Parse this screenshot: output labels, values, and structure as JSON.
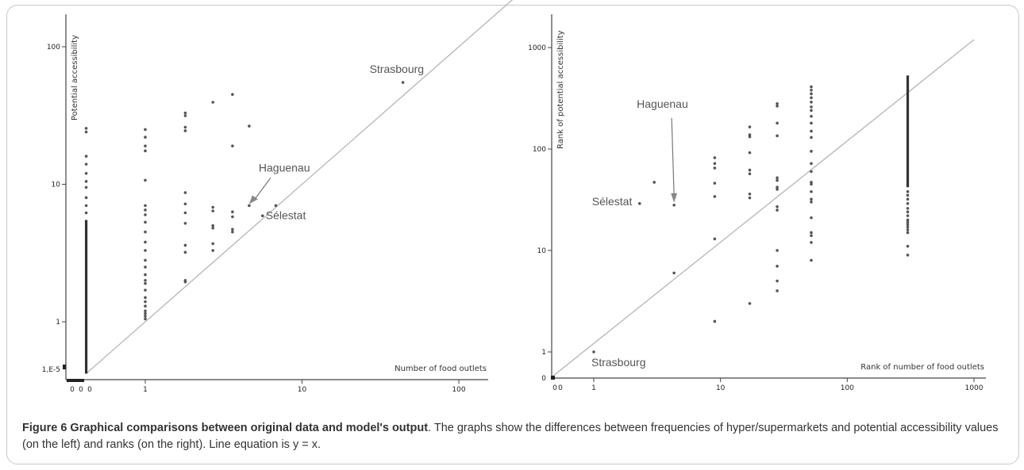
{
  "caption": {
    "title": "Figure 6 Graphical comparisons between original data and model's output",
    "text": ". The graphs show the differences between frequencies of hyper/supermarkets and potential accessibility values (on the left) and ranks (on the right). Line equation is y = x."
  },
  "chart_data": [
    {
      "type": "scatter",
      "xlabel": "Number of food outlets",
      "ylabel": "Potential accessibility",
      "x_scale": "log",
      "y_scale": "log",
      "x_ticks": [
        {
          "value": 1,
          "label": "1"
        },
        {
          "value": 10,
          "label": "10"
        },
        {
          "value": 100,
          "label": "100"
        }
      ],
      "x_zero_labels": [
        "0",
        "0",
        "0"
      ],
      "y_ticks": [
        {
          "value": 1,
          "label": "1"
        },
        {
          "value": 10,
          "label": "10"
        },
        {
          "value": 100,
          "label": "100"
        }
      ],
      "y_extra_tick": "1,E-5",
      "reference_line": "y = x",
      "annotations": [
        {
          "text": "Strasbourg",
          "x": 44,
          "y": 55
        },
        {
          "text": "Haguenau",
          "x": 4.6,
          "y": 7.0
        },
        {
          "text": "Sélestat",
          "x": 5.6,
          "y": 5.9
        }
      ],
      "points": [
        [
          1,
          25
        ],
        [
          1,
          22
        ],
        [
          1,
          19
        ],
        [
          1,
          17.5
        ],
        [
          1,
          10.7
        ],
        [
          1,
          7
        ],
        [
          1,
          6.5
        ],
        [
          1,
          6
        ],
        [
          1,
          5.3
        ],
        [
          1,
          4.5
        ],
        [
          1,
          3.8
        ],
        [
          1,
          3.3
        ],
        [
          1,
          2.8
        ],
        [
          1,
          2.5
        ],
        [
          1,
          2.2
        ],
        [
          1,
          2
        ],
        [
          1,
          1.9
        ],
        [
          1,
          1.7
        ],
        [
          1,
          1.5
        ],
        [
          1,
          1.4
        ],
        [
          1,
          1.3
        ],
        [
          1,
          1.2
        ],
        [
          1,
          1.15
        ],
        [
          1,
          1.1
        ],
        [
          1,
          1.05
        ],
        [
          1.8,
          33
        ],
        [
          1.8,
          31.5
        ],
        [
          1.8,
          26
        ],
        [
          1.8,
          24.5
        ],
        [
          1.8,
          8.7
        ],
        [
          1.8,
          7.2
        ],
        [
          1.8,
          6.2
        ],
        [
          1.8,
          5.2
        ],
        [
          1.8,
          3.6
        ],
        [
          1.8,
          3.2
        ],
        [
          1.8,
          2
        ],
        [
          1.8,
          1.95
        ],
        [
          2.7,
          39.5
        ],
        [
          2.7,
          6.8
        ],
        [
          2.7,
          6.4
        ],
        [
          2.7,
          5
        ],
        [
          2.7,
          4.8
        ],
        [
          2.7,
          3.7
        ],
        [
          2.7,
          3.3
        ],
        [
          3.6,
          45
        ],
        [
          3.6,
          19
        ],
        [
          3.6,
          6.3
        ],
        [
          3.6,
          5.8
        ],
        [
          3.6,
          4.7
        ],
        [
          3.6,
          4.5
        ],
        [
          4.6,
          26.5
        ],
        [
          4.6,
          7.0
        ],
        [
          5.6,
          5.9
        ],
        [
          6.8,
          7.0
        ],
        [
          44,
          55
        ]
      ],
      "zero_column": {
        "x": 0.42,
        "y_dense_range": [
          0.42,
          5.5
        ],
        "scattered_upper": [
          6.2,
          7,
          8,
          9.5,
          10.5,
          12,
          14,
          16,
          24,
          25.5
        ]
      }
    },
    {
      "type": "scatter",
      "xlabel": "Rank of number of food outlets",
      "ylabel": "Rank of potential accessibility",
      "x_scale": "log",
      "y_scale": "log",
      "x_ticks": [
        {
          "value": 1,
          "label": "1"
        },
        {
          "value": 10,
          "label": "10"
        },
        {
          "value": 100,
          "label": "100"
        },
        {
          "value": 1000,
          "label": "1000"
        }
      ],
      "x_zero_labels": [
        "0",
        "0"
      ],
      "y_ticks": [
        {
          "value": 1,
          "label": "1"
        },
        {
          "value": 10,
          "label": "10"
        },
        {
          "value": 100,
          "label": "100"
        },
        {
          "value": 1000,
          "label": "1000"
        }
      ],
      "y_zero_label": "0",
      "reference_line": "y = x",
      "annotations": [
        {
          "text": "Haguenau",
          "x": 4.3,
          "y": 28
        },
        {
          "text": "Sélestat",
          "x": 2.3,
          "y": 29
        },
        {
          "text": "Strasbourg",
          "x": 1,
          "y": 1
        }
      ],
      "points": [
        [
          1,
          1
        ],
        [
          2.3,
          29
        ],
        [
          3,
          47
        ],
        [
          4.3,
          28
        ],
        [
          4.3,
          6
        ],
        [
          9,
          82
        ],
        [
          9,
          72
        ],
        [
          9,
          65
        ],
        [
          9,
          46
        ],
        [
          9,
          34
        ],
        [
          9,
          13
        ],
        [
          9,
          2
        ],
        [
          17,
          165
        ],
        [
          17,
          138
        ],
        [
          17,
          132
        ],
        [
          17,
          92
        ],
        [
          17,
          62
        ],
        [
          17,
          57
        ],
        [
          17,
          36
        ],
        [
          17,
          33
        ],
        [
          17,
          3
        ],
        [
          28,
          280
        ],
        [
          28,
          265
        ],
        [
          28,
          180
        ],
        [
          28,
          135
        ],
        [
          28,
          52
        ],
        [
          28,
          49
        ],
        [
          28,
          42
        ],
        [
          28,
          40
        ],
        [
          28,
          27
        ],
        [
          28,
          25
        ],
        [
          28,
          10
        ],
        [
          28,
          7
        ],
        [
          28,
          5
        ],
        [
          28,
          4
        ],
        [
          52,
          410
        ],
        [
          52,
          380
        ],
        [
          52,
          350
        ],
        [
          52,
          320
        ],
        [
          52,
          290
        ],
        [
          52,
          260
        ],
        [
          52,
          240
        ],
        [
          52,
          210
        ],
        [
          52,
          180
        ],
        [
          52,
          150
        ],
        [
          52,
          130
        ],
        [
          52,
          95
        ],
        [
          52,
          72
        ],
        [
          52,
          60
        ],
        [
          52,
          47
        ],
        [
          52,
          45
        ],
        [
          52,
          38
        ],
        [
          52,
          32
        ],
        [
          52,
          30
        ],
        [
          52,
          21
        ],
        [
          52,
          15
        ],
        [
          52,
          14
        ],
        [
          52,
          12
        ],
        [
          52,
          8
        ],
        [
          300,
          38
        ],
        [
          300,
          35
        ],
        [
          300,
          32
        ],
        [
          300,
          29
        ],
        [
          300,
          26
        ],
        [
          300,
          24
        ],
        [
          300,
          22
        ],
        [
          300,
          20
        ],
        [
          300,
          19
        ],
        [
          300,
          18
        ],
        [
          300,
          17
        ],
        [
          300,
          16
        ],
        [
          300,
          15
        ],
        [
          300,
          11
        ],
        [
          300,
          9
        ]
      ],
      "dense_column": {
        "x": 300,
        "y_dense_range": [
          42,
          530
        ]
      }
    }
  ]
}
